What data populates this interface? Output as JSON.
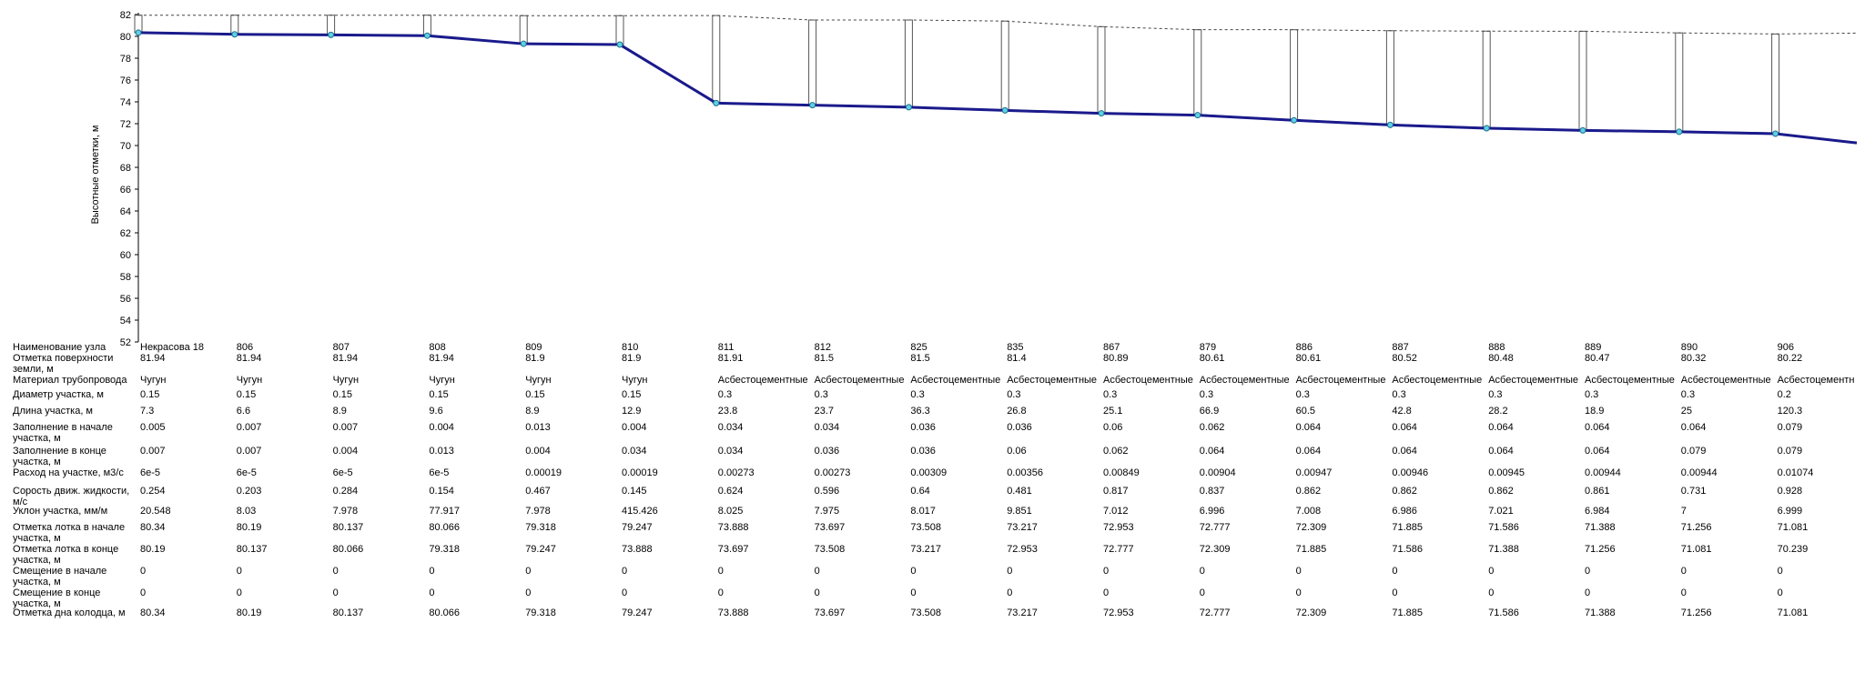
{
  "chart_data": {
    "type": "line",
    "ylabel": "Высотные отметки, м",
    "ylim": [
      52,
      82
    ],
    "yticks": [
      52,
      54,
      56,
      58,
      60,
      62,
      64,
      66,
      68,
      70,
      72,
      74,
      76,
      78,
      80,
      82
    ],
    "nodes": [
      {
        "name": "Некрасова 18",
        "ground": 81.94,
        "pipe_top": 80.345,
        "pipe_bottom": 80.34
      },
      {
        "name": "806",
        "ground": 81.94,
        "pipe_top": 80.197,
        "pipe_bottom": 80.19
      },
      {
        "name": "807",
        "ground": 81.94,
        "pipe_top": 80.144,
        "pipe_bottom": 80.137
      },
      {
        "name": "808",
        "ground": 81.94,
        "pipe_top": 80.07,
        "pipe_bottom": 80.066
      },
      {
        "name": "809",
        "ground": 81.9,
        "pipe_top": 79.331,
        "pipe_bottom": 79.318
      },
      {
        "name": "810",
        "ground": 81.9,
        "pipe_top": 79.251,
        "pipe_bottom": 79.247
      },
      {
        "name": "811",
        "ground": 81.91,
        "pipe_top": 73.922,
        "pipe_bottom": 73.888
      },
      {
        "name": "812",
        "ground": 81.5,
        "pipe_top": 73.731,
        "pipe_bottom": 73.697
      },
      {
        "name": "825",
        "ground": 81.5,
        "pipe_top": 73.544,
        "pipe_bottom": 73.508
      },
      {
        "name": "835",
        "ground": 81.4,
        "pipe_top": 73.253,
        "pipe_bottom": 73.217
      },
      {
        "name": "867",
        "ground": 80.89,
        "pipe_top": 73.013,
        "pipe_bottom": 72.953
      },
      {
        "name": "879",
        "ground": 80.61,
        "pipe_top": 72.839,
        "pipe_bottom": 72.777
      },
      {
        "name": "886",
        "ground": 80.61,
        "pipe_top": 72.373,
        "pipe_bottom": 72.309
      },
      {
        "name": "887",
        "ground": 80.52,
        "pipe_top": 71.949,
        "pipe_bottom": 71.885
      },
      {
        "name": "888",
        "ground": 80.48,
        "pipe_top": 71.65,
        "pipe_bottom": 71.586
      },
      {
        "name": "889",
        "ground": 80.47,
        "pipe_top": 71.452,
        "pipe_bottom": 71.388
      },
      {
        "name": "890",
        "ground": 80.32,
        "pipe_top": 71.32,
        "pipe_bottom": 71.256
      },
      {
        "name": "906",
        "ground": 80.22,
        "pipe_top": 71.16,
        "pipe_bottom": 71.081
      }
    ],
    "end_pipe_bottom": 70.239,
    "end_ground": 80.3
  },
  "table": {
    "rows": [
      {
        "label": "Наименование узла",
        "values": [
          "Некрасова 18",
          "806",
          "807",
          "808",
          "809",
          "810",
          "811",
          "812",
          "825",
          "835",
          "867",
          "879",
          "886",
          "887",
          "888",
          "889",
          "890",
          "906"
        ]
      },
      {
        "label": "Отметка поверхности земли, м",
        "values": [
          "81.94",
          "81.94",
          "81.94",
          "81.94",
          "81.9",
          "81.9",
          "81.91",
          "81.5",
          "81.5",
          "81.4",
          "80.89",
          "80.61",
          "80.61",
          "80.52",
          "80.48",
          "80.47",
          "80.32",
          "80.22"
        ]
      },
      {
        "label": "Материал трубопровода",
        "values": [
          "Чугун",
          "Чугун",
          "Чугун",
          "Чугун",
          "Чугун",
          "Чугун",
          "Асбестоцементные",
          "Асбестоцементные",
          "Асбестоцементные",
          "Асбестоцементные",
          "Асбестоцементные",
          "Асбестоцементные",
          "Асбестоцементные",
          "Асбестоцементные",
          "Асбестоцементные",
          "Асбестоцементные",
          "Асбестоцементные",
          "Асбестоцементн"
        ]
      },
      {
        "label": "Диаметр участка, м",
        "values": [
          "0.15",
          "0.15",
          "0.15",
          "0.15",
          "0.15",
          "0.15",
          "0.3",
          "0.3",
          "0.3",
          "0.3",
          "0.3",
          "0.3",
          "0.3",
          "0.3",
          "0.3",
          "0.3",
          "0.3",
          "0.2"
        ]
      },
      {
        "label": "Длина участка, м",
        "values": [
          "7.3",
          "6.6",
          "8.9",
          "9.6",
          "8.9",
          "12.9",
          "23.8",
          "23.7",
          "36.3",
          "26.8",
          "25.1",
          "66.9",
          "60.5",
          "42.8",
          "28.2",
          "18.9",
          "25",
          "120.3"
        ]
      },
      {
        "label": "Заполнение в начале участка, м",
        "values": [
          "0.005",
          "0.007",
          "0.007",
          "0.004",
          "0.013",
          "0.004",
          "0.034",
          "0.034",
          "0.036",
          "0.036",
          "0.06",
          "0.062",
          "0.064",
          "0.064",
          "0.064",
          "0.064",
          "0.064",
          "0.079"
        ]
      },
      {
        "label": "Заполнение в конце участка, м",
        "values": [
          "0.007",
          "0.007",
          "0.004",
          "0.013",
          "0.004",
          "0.034",
          "0.034",
          "0.036",
          "0.036",
          "0.06",
          "0.062",
          "0.064",
          "0.064",
          "0.064",
          "0.064",
          "0.064",
          "0.079",
          "0.079"
        ]
      },
      {
        "label": "Расход на участке, м3/с",
        "values": [
          "6e-5",
          "6e-5",
          "6e-5",
          "6e-5",
          "0.00019",
          "0.00019",
          "0.00273",
          "0.00273",
          "0.00309",
          "0.00356",
          "0.00849",
          "0.00904",
          "0.00947",
          "0.00946",
          "0.00945",
          "0.00944",
          "0.00944",
          "0.01074"
        ]
      },
      {
        "label": "Сорость движ. жидкости, м/с",
        "values": [
          "0.254",
          "0.203",
          "0.284",
          "0.154",
          "0.467",
          "0.145",
          "0.624",
          "0.596",
          "0.64",
          "0.481",
          "0.817",
          "0.837",
          "0.862",
          "0.862",
          "0.862",
          "0.861",
          "0.731",
          "0.928"
        ]
      },
      {
        "label": "Уклон участка, мм/м",
        "values": [
          "20.548",
          "8.03",
          "7.978",
          "77.917",
          "7.978",
          "415.426",
          "8.025",
          "7.975",
          "8.017",
          "9.851",
          "7.012",
          "6.996",
          "7.008",
          "6.986",
          "7.021",
          "6.984",
          "7",
          "6.999"
        ]
      },
      {
        "label": "Отметка лотка в начале участка, м",
        "values": [
          "80.34",
          "80.19",
          "80.137",
          "80.066",
          "79.318",
          "79.247",
          "73.888",
          "73.697",
          "73.508",
          "73.217",
          "72.953",
          "72.777",
          "72.309",
          "71.885",
          "71.586",
          "71.388",
          "71.256",
          "71.081"
        ]
      },
      {
        "label": "Отметка лотка в конце участка, м",
        "values": [
          "80.19",
          "80.137",
          "80.066",
          "79.318",
          "79.247",
          "73.888",
          "73.697",
          "73.508",
          "73.217",
          "72.953",
          "72.777",
          "72.309",
          "71.885",
          "71.586",
          "71.388",
          "71.256",
          "71.081",
          "70.239"
        ]
      },
      {
        "label": "Смещение в начале участка, м",
        "values": [
          "0",
          "0",
          "0",
          "0",
          "0",
          "0",
          "0",
          "0",
          "0",
          "0",
          "0",
          "0",
          "0",
          "0",
          "0",
          "0",
          "0",
          "0"
        ]
      },
      {
        "label": "Смещение в конце участка, м",
        "values": [
          "0",
          "0",
          "0",
          "0",
          "0",
          "0",
          "0",
          "0",
          "0",
          "0",
          "0",
          "0",
          "0",
          "0",
          "0",
          "0",
          "0",
          "0"
        ]
      },
      {
        "label": "Отметка дна колодца, м",
        "values": [
          "80.34",
          "80.19",
          "80.137",
          "80.066",
          "79.318",
          "79.247",
          "73.888",
          "73.697",
          "73.508",
          "73.217",
          "72.953",
          "72.777",
          "72.309",
          "71.885",
          "71.586",
          "71.388",
          "71.256",
          "71.081"
        ]
      }
    ]
  }
}
